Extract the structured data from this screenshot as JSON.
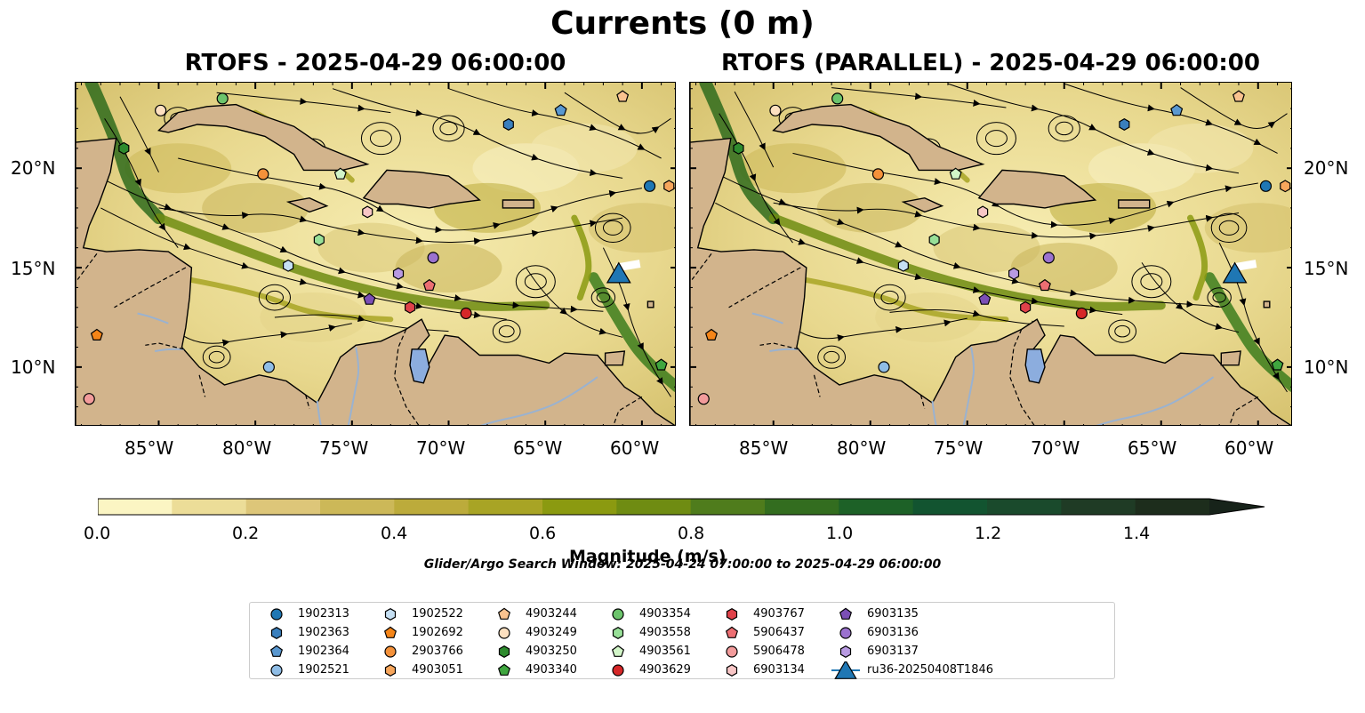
{
  "figure_title": "Currents (0 m)",
  "panels": [
    {
      "title": "RTOFS - 2025-04-29 06:00:00"
    },
    {
      "title": "RTOFS (PARALLEL) - 2025-04-29 06:00:00"
    }
  ],
  "axes": {
    "lon_ticks": [
      "85°W",
      "80°W",
      "75°W",
      "70°W",
      "65°W",
      "60°W"
    ],
    "lat_ticks": [
      "20°N",
      "15°N",
      "10°N"
    ]
  },
  "colorbar": {
    "label": "Magnitude (m/s)",
    "ticks": [
      "0.0",
      "0.2",
      "0.4",
      "0.6",
      "0.8",
      "1.0",
      "1.2",
      "1.4"
    ],
    "colors": [
      "#fbf5c3",
      "#ecdd98",
      "#ddc679",
      "#ccb858",
      "#bcab3b",
      "#a8a425",
      "#8b9a10",
      "#6f8c12",
      "#4f7c1c",
      "#336d1f",
      "#1d6127",
      "#125430",
      "#1a4a2c",
      "#1f3b25",
      "#1d2d1c",
      "#17231a"
    ],
    "extend": "max"
  },
  "search_window": "Glider/Argo Search Window: 2025-04-24 07:00:00 to 2025-04-29 06:00:00",
  "map_colors": {
    "land": "#d2b48c",
    "river": "#9ab2d0",
    "lake": "#8cadde",
    "coast": "#000000"
  },
  "legend": [
    {
      "id": "1902313",
      "marker": "circle",
      "color": "#1f77b4"
    },
    {
      "id": "1902363",
      "marker": "hexagon",
      "color": "#3a7fbd"
    },
    {
      "id": "1902364",
      "marker": "pentagon",
      "color": "#5a98d0"
    },
    {
      "id": "1902521",
      "marker": "circle",
      "color": "#8fbde6"
    },
    {
      "id": "1902522",
      "marker": "hexagon",
      "color": "#c6e0f4"
    },
    {
      "id": "1902692",
      "marker": "pentagon",
      "color": "#f58518"
    },
    {
      "id": "2903766",
      "marker": "circle",
      "color": "#f4913a"
    },
    {
      "id": "4903051",
      "marker": "hexagon",
      "color": "#f7a65c"
    },
    {
      "id": "4903244",
      "marker": "pentagon",
      "color": "#f9c28f"
    },
    {
      "id": "4903249",
      "marker": "circle",
      "color": "#fde0c0"
    },
    {
      "id": "4903250",
      "marker": "hexagon",
      "color": "#2e8b2e"
    },
    {
      "id": "4903340",
      "marker": "pentagon",
      "color": "#3fa63f"
    },
    {
      "id": "4903354",
      "marker": "circle",
      "color": "#6cc46c"
    },
    {
      "id": "4903558",
      "marker": "hexagon",
      "color": "#98e098"
    },
    {
      "id": "4903561",
      "marker": "pentagon",
      "color": "#d2f5c8"
    },
    {
      "id": "4903629",
      "marker": "circle",
      "color": "#d62728"
    },
    {
      "id": "4903767",
      "marker": "hexagon",
      "color": "#e0424a"
    },
    {
      "id": "5906437",
      "marker": "pentagon",
      "color": "#ec6e72"
    },
    {
      "id": "5906478",
      "marker": "circle",
      "color": "#f29b9b"
    },
    {
      "id": "6903134",
      "marker": "hexagon",
      "color": "#f8c6c6"
    },
    {
      "id": "6903135",
      "marker": "pentagon",
      "color": "#7b4fb5"
    },
    {
      "id": "6903136",
      "marker": "circle",
      "color": "#9b72cf"
    },
    {
      "id": "6903137",
      "marker": "hexagon",
      "color": "#b89ae2"
    },
    {
      "id": "ru36-20250408T1846",
      "marker": "triangle",
      "color": "#1f77b4"
    }
  ],
  "floats": [
    {
      "id": "4903249",
      "lon": -84.9,
      "lat": 22.9
    },
    {
      "id": "4903354",
      "lon": -81.7,
      "lat": 23.5
    },
    {
      "id": "1902363",
      "lon": -66.9,
      "lat": 22.2
    },
    {
      "id": "1902364",
      "lon": -64.2,
      "lat": 22.9
    },
    {
      "id": "4903244",
      "lon": -61.0,
      "lat": 23.6
    },
    {
      "id": "2903766",
      "lon": -79.6,
      "lat": 19.7
    },
    {
      "id": "4903561",
      "lon": -75.6,
      "lat": 19.7
    },
    {
      "id": "4903250",
      "lon": -86.8,
      "lat": 21.0
    },
    {
      "id": "1902313",
      "lon": -59.6,
      "lat": 19.1
    },
    {
      "id": "4903051",
      "lon": -58.6,
      "lat": 19.1
    },
    {
      "id": "6903134",
      "lon": -74.2,
      "lat": 17.8
    },
    {
      "id": "4903558",
      "lon": -76.7,
      "lat": 16.4
    },
    {
      "id": "6903136",
      "lon": -70.8,
      "lat": 15.5
    },
    {
      "id": "1902522",
      "lon": -78.3,
      "lat": 15.1
    },
    {
      "id": "6903137",
      "lon": -72.6,
      "lat": 14.7
    },
    {
      "id": "5906437",
      "lon": -71.0,
      "lat": 14.1
    },
    {
      "id": "6903135",
      "lon": -74.1,
      "lat": 13.4
    },
    {
      "id": "4903767",
      "lon": -72.0,
      "lat": 13.0
    },
    {
      "id": "4903629",
      "lon": -69.1,
      "lat": 12.7
    },
    {
      "id": "1902692",
      "lon": -88.2,
      "lat": 11.6
    },
    {
      "id": "1902521",
      "lon": -79.3,
      "lat": 10.0
    },
    {
      "id": "5906478",
      "lon": -88.6,
      "lat": 8.4
    },
    {
      "id": "4903340",
      "lon": -59.0,
      "lat": 10.1
    }
  ],
  "glider": {
    "id": "ru36-20250408T1846",
    "lon": -61.2,
    "lat": 14.7
  }
}
